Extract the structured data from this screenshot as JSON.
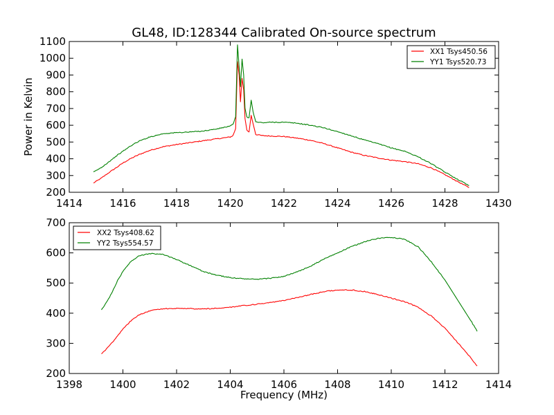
{
  "figure": {
    "title": "GL48, ID:128344 Calibrated On-source spectrum"
  },
  "chart_data": [
    {
      "type": "line",
      "title": "GL48, ID:128344 Calibrated On-source spectrum",
      "xlabel": "",
      "ylabel": "Power in Kelvin",
      "xlim": [
        1414,
        1430
      ],
      "ylim": [
        200,
        1100
      ],
      "xticks": [
        "1414",
        "1416",
        "1418",
        "1420",
        "1422",
        "1424",
        "1426",
        "1428",
        "1430"
      ],
      "yticks": [
        "200",
        "300",
        "400",
        "500",
        "600",
        "700",
        "800",
        "900",
        "1000",
        "1100"
      ],
      "grid": false,
      "legend_position": "top-right",
      "series": [
        {
          "name": "XX1 Tsys450.56",
          "color": "#ff0000",
          "points": [
            [
              1414.9,
              255
            ],
            [
              1415.2,
              285
            ],
            [
              1415.5,
              320
            ],
            [
              1415.8,
              352
            ],
            [
              1416.0,
              375
            ],
            [
              1416.3,
              402
            ],
            [
              1416.6,
              425
            ],
            [
              1417.0,
              450
            ],
            [
              1417.5,
              472
            ],
            [
              1418.0,
              485
            ],
            [
              1418.5,
              496
            ],
            [
              1419.0,
              508
            ],
            [
              1419.5,
              519
            ],
            [
              1420.0,
              530
            ],
            [
              1420.1,
              538
            ],
            [
              1420.2,
              580
            ],
            [
              1420.27,
              980
            ],
            [
              1420.33,
              900
            ],
            [
              1420.38,
              740
            ],
            [
              1420.44,
              880
            ],
            [
              1420.5,
              810
            ],
            [
              1420.55,
              640
            ],
            [
              1420.62,
              570
            ],
            [
              1420.7,
              560
            ],
            [
              1420.78,
              660
            ],
            [
              1420.85,
              610
            ],
            [
              1420.95,
              545
            ],
            [
              1421.2,
              538
            ],
            [
              1421.5,
              536
            ],
            [
              1422.0,
              533
            ],
            [
              1422.5,
              523
            ],
            [
              1423.0,
              510
            ],
            [
              1423.5,
              490
            ],
            [
              1424.0,
              465
            ],
            [
              1424.5,
              440
            ],
            [
              1425.0,
              420
            ],
            [
              1425.5,
              405
            ],
            [
              1426.0,
              392
            ],
            [
              1426.5,
              383
            ],
            [
              1427.0,
              370
            ],
            [
              1427.5,
              345
            ],
            [
              1428.0,
              305
            ],
            [
              1428.5,
              262
            ],
            [
              1428.9,
              228
            ]
          ]
        },
        {
          "name": "YY1 Tsys520.73",
          "color": "#008000",
          "points": [
            [
              1414.9,
              320
            ],
            [
              1415.2,
              348
            ],
            [
              1415.5,
              385
            ],
            [
              1415.8,
              422
            ],
            [
              1416.0,
              445
            ],
            [
              1416.3,
              478
            ],
            [
              1416.6,
              505
            ],
            [
              1417.0,
              530
            ],
            [
              1417.5,
              550
            ],
            [
              1418.0,
              556
            ],
            [
              1418.5,
              560
            ],
            [
              1419.0,
              566
            ],
            [
              1419.5,
              578
            ],
            [
              1420.0,
              595
            ],
            [
              1420.1,
              605
            ],
            [
              1420.2,
              650
            ],
            [
              1420.27,
              1080
            ],
            [
              1420.33,
              950
            ],
            [
              1420.38,
              830
            ],
            [
              1420.44,
              995
            ],
            [
              1420.5,
              900
            ],
            [
              1420.55,
              700
            ],
            [
              1420.62,
              650
            ],
            [
              1420.7,
              645
            ],
            [
              1420.78,
              750
            ],
            [
              1420.85,
              680
            ],
            [
              1420.95,
              620
            ],
            [
              1421.2,
              615
            ],
            [
              1421.5,
              618
            ],
            [
              1422.0,
              618
            ],
            [
              1422.5,
              612
            ],
            [
              1423.0,
              600
            ],
            [
              1423.5,
              584
            ],
            [
              1424.0,
              562
            ],
            [
              1424.5,
              538
            ],
            [
              1425.0,
              512
            ],
            [
              1425.5,
              490
            ],
            [
              1426.0,
              465
            ],
            [
              1426.5,
              445
            ],
            [
              1427.0,
              412
            ],
            [
              1427.5,
              370
            ],
            [
              1428.0,
              320
            ],
            [
              1428.5,
              275
            ],
            [
              1428.9,
              240
            ]
          ]
        }
      ]
    },
    {
      "type": "line",
      "title": "",
      "xlabel": "Frequency (MHz)",
      "ylabel": "",
      "xlim": [
        1398,
        1414
      ],
      "ylim": [
        200,
        700
      ],
      "xticks": [
        "1398",
        "1400",
        "1402",
        "1404",
        "1406",
        "1408",
        "1410",
        "1412",
        "1414"
      ],
      "yticks": [
        "200",
        "300",
        "400",
        "500",
        "600",
        "700"
      ],
      "grid": false,
      "legend_position": "top-left",
      "series": [
        {
          "name": "XX2 Tsys408.62",
          "color": "#ff0000",
          "points": [
            [
              1399.2,
              265
            ],
            [
              1399.5,
              292
            ],
            [
              1399.8,
              325
            ],
            [
              1400.0,
              348
            ],
            [
              1400.3,
              375
            ],
            [
              1400.6,
              395
            ],
            [
              1401.0,
              408
            ],
            [
              1401.5,
              415
            ],
            [
              1402.0,
              416
            ],
            [
              1402.5,
              415
            ],
            [
              1403.0,
              414
            ],
            [
              1403.5,
              416
            ],
            [
              1404.0,
              420
            ],
            [
              1404.5,
              425
            ],
            [
              1405.0,
              430
            ],
            [
              1405.5,
              435
            ],
            [
              1406.0,
              442
            ],
            [
              1406.5,
              452
            ],
            [
              1407.0,
              462
            ],
            [
              1407.5,
              472
            ],
            [
              1408.0,
              477
            ],
            [
              1408.5,
              477
            ],
            [
              1409.0,
              472
            ],
            [
              1409.5,
              462
            ],
            [
              1410.0,
              450
            ],
            [
              1410.5,
              438
            ],
            [
              1411.0,
              420
            ],
            [
              1411.5,
              390
            ],
            [
              1412.0,
              350
            ],
            [
              1412.5,
              300
            ],
            [
              1413.0,
              248
            ],
            [
              1413.2,
              225
            ]
          ]
        },
        {
          "name": "YY2 Tsys554.57",
          "color": "#008000",
          "points": [
            [
              1399.2,
              410
            ],
            [
              1399.5,
              452
            ],
            [
              1399.8,
              508
            ],
            [
              1400.0,
              538
            ],
            [
              1400.3,
              572
            ],
            [
              1400.6,
              590
            ],
            [
              1401.0,
              598
            ],
            [
              1401.5,
              595
            ],
            [
              1402.0,
              578
            ],
            [
              1402.5,
              558
            ],
            [
              1403.0,
              538
            ],
            [
              1403.5,
              526
            ],
            [
              1404.0,
              518
            ],
            [
              1404.5,
              514
            ],
            [
              1405.0,
              512
            ],
            [
              1405.5,
              516
            ],
            [
              1406.0,
              522
            ],
            [
              1406.5,
              537
            ],
            [
              1407.0,
              556
            ],
            [
              1407.5,
              580
            ],
            [
              1408.0,
              600
            ],
            [
              1408.5,
              620
            ],
            [
              1409.0,
              637
            ],
            [
              1409.5,
              648
            ],
            [
              1410.0,
              652
            ],
            [
              1410.5,
              645
            ],
            [
              1411.0,
              620
            ],
            [
              1411.5,
              570
            ],
            [
              1412.0,
              510
            ],
            [
              1412.5,
              440
            ],
            [
              1413.0,
              370
            ],
            [
              1413.2,
              340
            ]
          ]
        }
      ]
    }
  ]
}
